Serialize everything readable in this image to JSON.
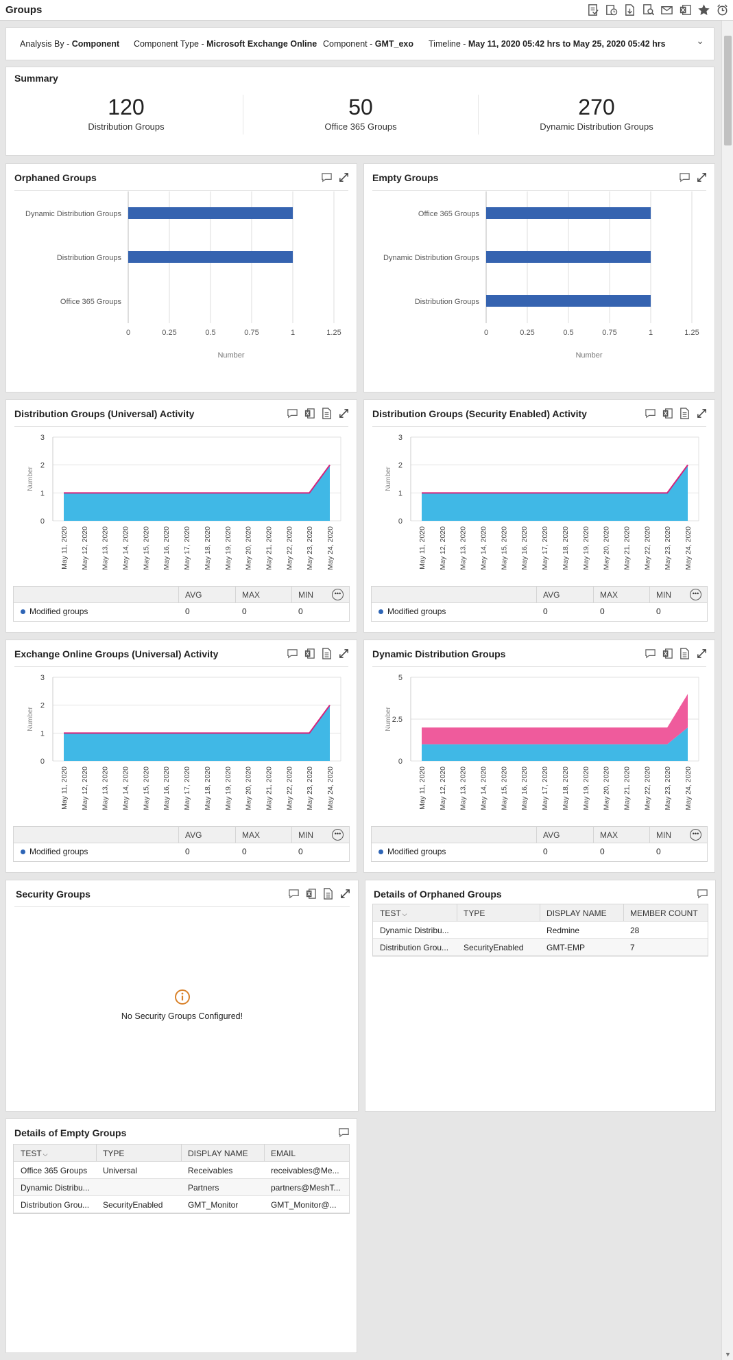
{
  "window": {
    "title": "Groups"
  },
  "toolbar": {
    "icons": [
      "report-icon",
      "schedule-report-icon",
      "export-icon",
      "search-report-icon",
      "email-icon",
      "excel-icon",
      "favorite-star-icon",
      "alarm-icon"
    ]
  },
  "filters": {
    "analysis_by_label": "Analysis By - ",
    "analysis_by_value": "Component",
    "component_type_label": "Component Type - ",
    "component_type_value": "Microsoft Exchange Online",
    "component_label": "Component - ",
    "component_value": "GMT_exo",
    "timeline_label": "Timeline - ",
    "timeline_value": "May 11, 2020 05:42 hrs to May 25, 2020 05:42 hrs"
  },
  "summary": {
    "title": "Summary",
    "stats": [
      {
        "value": "120",
        "label": "Distribution Groups"
      },
      {
        "value": "50",
        "label": "Office 365 Groups"
      },
      {
        "value": "270",
        "label": "Dynamic Distribution Groups"
      }
    ]
  },
  "orphaned": {
    "title": "Orphaned Groups"
  },
  "empty": {
    "title": "Empty Groups"
  },
  "dgu": {
    "title": "Distribution Groups (Universal) Activity"
  },
  "dgs": {
    "title": "Distribution Groups (Security Enabled) Activity"
  },
  "eog": {
    "title": "Exchange Online Groups (Universal) Activity"
  },
  "ddg": {
    "title": "Dynamic Distribution Groups"
  },
  "legend_table": {
    "headers": [
      "AVG",
      "MAX",
      "MIN"
    ],
    "row_label": "Modified groups",
    "values": [
      "0",
      "0",
      "0"
    ]
  },
  "security": {
    "title": "Security Groups",
    "message": "No Security Groups Configured!"
  },
  "orphaned_details": {
    "title": "Details of Orphaned Groups",
    "headers": [
      "TEST",
      "TYPE",
      "DISPLAY NAME",
      "MEMBER COUNT"
    ],
    "rows": [
      [
        "Dynamic Distribu...",
        "",
        "Redmine",
        "28"
      ],
      [
        "Distribution Grou...",
        "SecurityEnabled",
        "GMT-EMP",
        "7"
      ]
    ]
  },
  "empty_details": {
    "title": "Details of Empty Groups",
    "headers": [
      "TEST",
      "TYPE",
      "DISPLAY NAME",
      "EMAIL"
    ],
    "rows": [
      [
        "Office 365 Groups",
        "Universal",
        "Receivables",
        "receivables@Me..."
      ],
      [
        "Dynamic Distribu...",
        "",
        "Partners",
        "partners@MeshT..."
      ],
      [
        "Distribution Grou...",
        "SecurityEnabled",
        "GMT_Monitor",
        "GMT_Monitor@..."
      ]
    ]
  },
  "chart_data": [
    {
      "type": "bar",
      "orientation": "horizontal",
      "title": "Orphaned Groups",
      "categories": [
        "Dynamic Distribution Groups",
        "Distribution Groups",
        "Office 365 Groups"
      ],
      "values": [
        1,
        1,
        0
      ],
      "xlabel": "Number",
      "ticks": [
        "0",
        "0.25",
        "0.5",
        "0.75",
        "1",
        "1.25"
      ],
      "xlim": [
        0,
        1.25
      ],
      "color": "#3563b0"
    },
    {
      "type": "bar",
      "orientation": "horizontal",
      "title": "Empty Groups",
      "categories": [
        "Office 365 Groups",
        "Dynamic Distribution Groups",
        "Distribution Groups"
      ],
      "values": [
        1,
        1,
        1
      ],
      "xlabel": "Number",
      "ticks": [
        "0",
        "0.25",
        "0.5",
        "0.75",
        "1",
        "1.25"
      ],
      "xlim": [
        0,
        1.25
      ],
      "color": "#3563b0"
    },
    {
      "type": "area",
      "title": "Distribution Groups (Universal) Activity",
      "x": [
        "May 11, 2020",
        "May 12, 2020",
        "May 13, 2020",
        "May 14, 2020",
        "May 15, 2020",
        "May 16, 2020",
        "May 17, 2020",
        "May 18, 2020",
        "May 19, 2020",
        "May 20, 2020",
        "May 21, 2020",
        "May 22, 2020",
        "May 23, 2020",
        "May 24, 2020"
      ],
      "ylabel": "Number",
      "yticks": [
        "0",
        "1",
        "2",
        "3"
      ],
      "ylim": [
        0,
        3
      ],
      "series": [
        {
          "values": [
            1,
            1,
            1,
            1,
            1,
            1,
            1,
            1,
            1,
            1,
            1,
            1,
            1,
            2
          ],
          "color": "#40b8e6",
          "line": "#d6237a"
        }
      ]
    },
    {
      "type": "area",
      "title": "Distribution Groups (Security Enabled) Activity",
      "x": [
        "May 11, 2020",
        "May 12, 2020",
        "May 13, 2020",
        "May 14, 2020",
        "May 15, 2020",
        "May 16, 2020",
        "May 17, 2020",
        "May 18, 2020",
        "May 19, 2020",
        "May 20, 2020",
        "May 21, 2020",
        "May 22, 2020",
        "May 23, 2020",
        "May 24, 2020"
      ],
      "ylabel": "Number",
      "yticks": [
        "0",
        "1",
        "2",
        "3"
      ],
      "ylim": [
        0,
        3
      ],
      "series": [
        {
          "values": [
            1,
            1,
            1,
            1,
            1,
            1,
            1,
            1,
            1,
            1,
            1,
            1,
            1,
            2
          ],
          "color": "#40b8e6",
          "line": "#d6237a"
        }
      ]
    },
    {
      "type": "area",
      "title": "Exchange Online Groups (Universal) Activity",
      "x": [
        "May 11, 2020",
        "May 12, 2020",
        "May 13, 2020",
        "May 14, 2020",
        "May 15, 2020",
        "May 16, 2020",
        "May 17, 2020",
        "May 18, 2020",
        "May 19, 2020",
        "May 20, 2020",
        "May 21, 2020",
        "May 22, 2020",
        "May 23, 2020",
        "May 24, 2020"
      ],
      "ylabel": "Number",
      "yticks": [
        "0",
        "1",
        "2",
        "3"
      ],
      "ylim": [
        0,
        3
      ],
      "series": [
        {
          "values": [
            1,
            1,
            1,
            1,
            1,
            1,
            1,
            1,
            1,
            1,
            1,
            1,
            1,
            2
          ],
          "color": "#40b8e6",
          "line": "#d6237a"
        }
      ]
    },
    {
      "type": "area",
      "stacked": true,
      "title": "Dynamic Distribution Groups",
      "x": [
        "May 11, 2020",
        "May 12, 2020",
        "May 13, 2020",
        "May 14, 2020",
        "May 15, 2020",
        "May 16, 2020",
        "May 17, 2020",
        "May 18, 2020",
        "May 19, 2020",
        "May 20, 2020",
        "May 21, 2020",
        "May 22, 2020",
        "May 23, 2020",
        "May 24, 2020"
      ],
      "ylabel": "Number",
      "yticks": [
        "0",
        "2.5",
        "5"
      ],
      "ylim": [
        0,
        5
      ],
      "series": [
        {
          "values": [
            1,
            1,
            1,
            1,
            1,
            1,
            1,
            1,
            1,
            1,
            1,
            1,
            1,
            2
          ],
          "color": "#40b8e6"
        },
        {
          "values": [
            1,
            1,
            1,
            1,
            1,
            1,
            1,
            1,
            1,
            1,
            1,
            1,
            1,
            2
          ],
          "color": "#ef5b9c"
        }
      ]
    }
  ]
}
